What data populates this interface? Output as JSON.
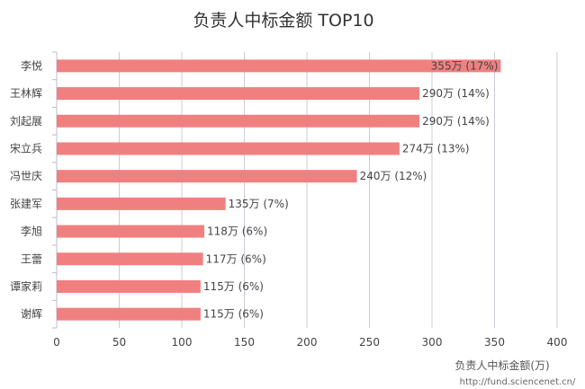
{
  "chart_data": {
    "type": "bar",
    "orientation": "horizontal",
    "title": "负责人中标金额 TOP10",
    "xlabel": "负责人中标金额(万)",
    "ylabel": "",
    "categories": [
      "李悦",
      "王林辉",
      "刘起展",
      "宋立兵",
      "冯世庆",
      "张建军",
      "李旭",
      "王蕾",
      "谭家莉",
      "谢辉"
    ],
    "values": [
      355,
      290,
      290,
      274,
      240,
      135,
      118,
      117,
      115,
      115
    ],
    "data_labels": [
      "355万 (17%)",
      "290万 (14%)",
      "290万 (14%)",
      "274万 (13%)",
      "240万 (12%)",
      "135万 (7%)",
      "118万 (6%)",
      "117万 (6%)",
      "115万 (6%)",
      "115万 (6%)"
    ],
    "xlim": [
      0,
      400
    ],
    "xticks": [
      0,
      50,
      100,
      150,
      200,
      250,
      300,
      350,
      400
    ],
    "grid": "vertical",
    "bar_color": "#f08080",
    "grid_color": "#c8ccd8"
  },
  "source": "http://fund.sciencenet.cn/"
}
